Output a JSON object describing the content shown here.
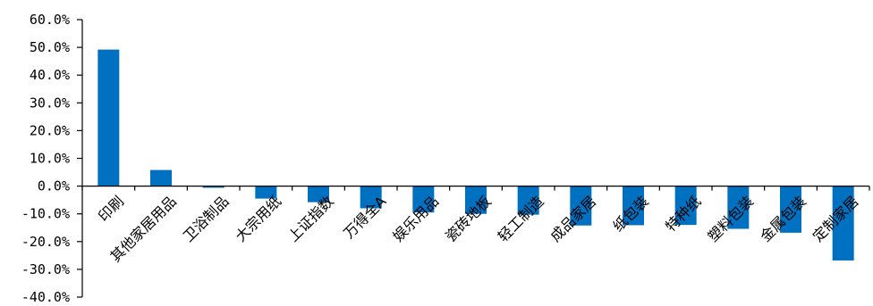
{
  "chart_data": {
    "type": "bar",
    "title": "",
    "xlabel": "",
    "ylabel": "",
    "ylim": [
      -40,
      60
    ],
    "yticks": [
      60,
      50,
      40,
      30,
      20,
      10,
      0,
      -10,
      -20,
      -30,
      -40
    ],
    "ytick_labels": [
      "60.0%",
      "50.0%",
      "40.0%",
      "30.0%",
      "20.0%",
      "10.0%",
      "0.0%",
      "-10.0%",
      "-20.0%",
      "-30.0%",
      "-40.0%"
    ],
    "categories": [
      "印刷",
      "其他家居用品",
      "卫浴制品",
      "大宗用纸",
      "上证指数",
      "万得全A",
      "娱乐用品",
      "瓷砖地板",
      "轻工制造",
      "成品家居",
      "纸包装",
      "特种纸",
      "塑料包装",
      "金属包装",
      "定制家居"
    ],
    "values": [
      49.2,
      5.8,
      -0.6,
      -4.5,
      -5.8,
      -8.0,
      -9.5,
      -10.0,
      -10.3,
      -14.2,
      -14.1,
      -14.0,
      -15.4,
      -16.8,
      -26.8
    ],
    "bar_color": "#0070C0",
    "grid": false,
    "legend": "none"
  }
}
